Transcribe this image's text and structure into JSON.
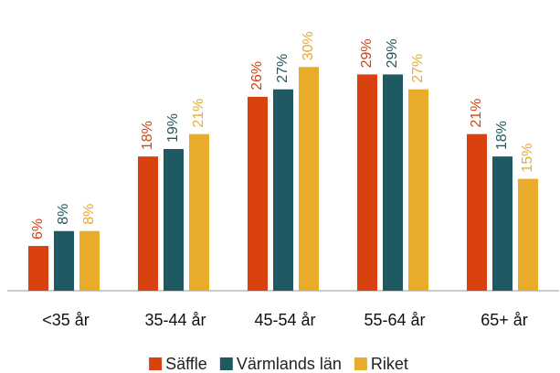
{
  "chart_data": {
    "type": "bar",
    "categories": [
      "<35 år",
      "35-44 år",
      "45-54 år",
      "55-64 år",
      "65+ år"
    ],
    "series": [
      {
        "name": "Säffle",
        "color": "#d9410e",
        "values": [
          6,
          18,
          26,
          29,
          21
        ],
        "value_labels": [
          "6%",
          "18%",
          "26%",
          "29%",
          "21%"
        ]
      },
      {
        "name": "Värmlands län",
        "color": "#1f5a63",
        "values": [
          8,
          19,
          27,
          29,
          18
        ],
        "value_labels": [
          "8%",
          "19%",
          "27%",
          "29%",
          "18%"
        ]
      },
      {
        "name": "Riket",
        "color": "#e8ab2a",
        "values": [
          8,
          21,
          30,
          27,
          15
        ],
        "value_labels": [
          "8%",
          "21%",
          "30%",
          "27%",
          "15%"
        ]
      }
    ],
    "ylim": [
      0,
      38
    ],
    "legend": "bottom"
  }
}
